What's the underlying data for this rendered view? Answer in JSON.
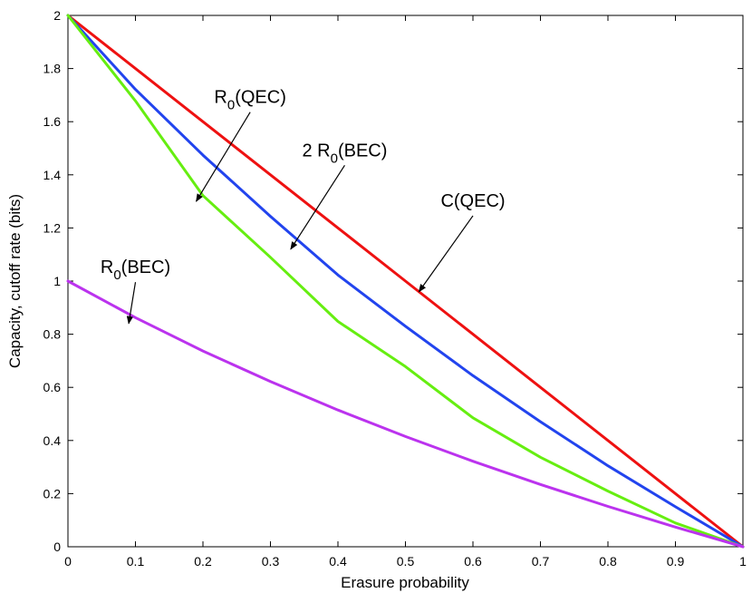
{
  "chart_data": {
    "type": "line",
    "title": "",
    "xlabel": "Erasure probability",
    "ylabel": "Capacity, cutoff rate (bits)",
    "xlim": [
      0,
      1
    ],
    "ylim": [
      0,
      2
    ],
    "xticks": [
      0,
      0.1,
      0.2,
      0.3,
      0.4,
      0.5,
      0.6,
      0.7,
      0.8,
      0.9,
      1
    ],
    "yticks": [
      0,
      0.2,
      0.4,
      0.6,
      0.8,
      1,
      1.2,
      1.4,
      1.6,
      1.8,
      2
    ],
    "xtick_labels": [
      "0",
      "0.1",
      "0.2",
      "0.3",
      "0.4",
      "0.5",
      "0.6",
      "0.7",
      "0.8",
      "0.9",
      "1"
    ],
    "ytick_labels": [
      "0",
      "0.2",
      "0.4",
      "0.6",
      "0.8",
      "1",
      "1.2",
      "1.4",
      "1.6",
      "1.8",
      "2"
    ],
    "grid": false,
    "x": [
      0,
      0.1,
      0.2,
      0.3,
      0.4,
      0.5,
      0.6,
      0.7,
      0.8,
      0.9,
      1
    ],
    "series": [
      {
        "name": "C(QEC)",
        "color": "#ee1111",
        "values": [
          2,
          1.8,
          1.6,
          1.4,
          1.2,
          1.0,
          0.8,
          0.6,
          0.4,
          0.2,
          0
        ]
      },
      {
        "name": "2 R0(BEC)",
        "color": "#2244ee",
        "values": [
          2,
          1.7215,
          1.4739,
          1.2436,
          1.0227,
          0.8301,
          0.6439,
          0.4708,
          0.3049,
          0.1506,
          0
        ]
      },
      {
        "name": "R0(QEC)",
        "color": "#66ee11",
        "values": [
          2,
          1.6781,
          1.3219,
          1.0893,
          0.848,
          0.6781,
          0.4854,
          0.337,
          0.2094,
          0.0893,
          0
        ]
      },
      {
        "name": "R0(BEC)",
        "color": "#bb33ee",
        "values": [
          1,
          0.8625,
          0.737,
          0.6218,
          0.5146,
          0.415,
          0.3219,
          0.2345,
          0.152,
          0.074,
          0
        ]
      }
    ],
    "annotations": [
      {
        "label": "C(QEC)",
        "text": "C(QEC)",
        "base": "C(QEC)",
        "sub": "",
        "rest": "",
        "target": [
          0.52,
          0.96
        ],
        "text_at": [
          0.6,
          1.28
        ]
      },
      {
        "label": "2 R0(BEC)",
        "text": "2 R0(BEC)",
        "base": "2 R",
        "sub": "0",
        "rest": "(BEC)",
        "target": [
          0.33,
          1.12
        ],
        "text_at": [
          0.41,
          1.47
        ]
      },
      {
        "label": "R0(QEC)",
        "text": "R0(QEC)",
        "base": "R",
        "sub": "0",
        "rest": "(QEC)",
        "target": [
          0.19,
          1.3
        ],
        "text_at": [
          0.27,
          1.67
        ]
      },
      {
        "label": "R0(BEC)",
        "text": "R0(BEC)",
        "base": "R",
        "sub": "0",
        "rest": "(BEC)",
        "target": [
          0.09,
          0.84
        ],
        "text_at": [
          0.1,
          1.03
        ]
      }
    ]
  }
}
